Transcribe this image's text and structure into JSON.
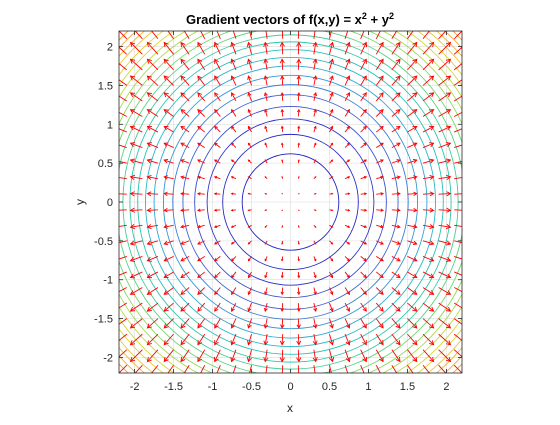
{
  "chart_data": {
    "type": "contour+quiver",
    "title_prefix": "Gradient vectors of f(x,y) = x",
    "title_exp1": "2",
    "title_mid": " + y",
    "title_exp2": "2",
    "xlabel": "x",
    "ylabel": "y",
    "xlim": [
      -2.2,
      2.2
    ],
    "ylim": [
      -2.2,
      2.2
    ],
    "xticks": [
      -2,
      -1.5,
      -1,
      -0.5,
      0,
      0.5,
      1,
      1.5,
      2
    ],
    "yticks": [
      -2,
      -1.5,
      -1,
      -0.5,
      0,
      0.5,
      1,
      1.5,
      2
    ],
    "xtick_labels": [
      "-2",
      "-1.5",
      "-1",
      "-0.5",
      "0",
      "0.5",
      "1",
      "1.5",
      "2"
    ],
    "ytick_labels": [
      "-2",
      "-1.5",
      "-1",
      "-0.5",
      "0",
      "0.5",
      "1",
      "1.5",
      "2"
    ],
    "grid": true,
    "box": true,
    "contour": {
      "function": "x^2 + y^2",
      "level_radii": [
        0.62,
        0.87,
        1.07,
        1.23,
        1.38,
        1.51,
        1.63,
        1.75,
        1.86,
        1.96,
        2.06,
        2.15,
        2.24,
        2.33,
        2.42,
        2.5,
        2.58,
        2.66,
        2.74,
        2.82,
        2.89,
        2.96,
        3.03,
        3.1
      ],
      "colors": [
        "#1f1fbf",
        "#2929c4",
        "#3333c9",
        "#3a4fcf",
        "#3f63d3",
        "#3a7fd6",
        "#3596d6",
        "#2fa9d2",
        "#2ab8c9",
        "#27c2bb",
        "#2dc9ab",
        "#3fcf98",
        "#56d483",
        "#6fd86e",
        "#89db5c",
        "#a3dd4c",
        "#bcdd3e",
        "#d2da34",
        "#e3d22f",
        "#eec52d",
        "#f3b82c",
        "#f6aa2b",
        "#f89d2a",
        "#f99129"
      ]
    },
    "quiver": {
      "field": "gradient [2x, 2y]",
      "color": "#ff0000",
      "grid_start": -2.1,
      "grid_end": 2.1,
      "grid_step": 0.2,
      "scale": 0.4
    }
  }
}
